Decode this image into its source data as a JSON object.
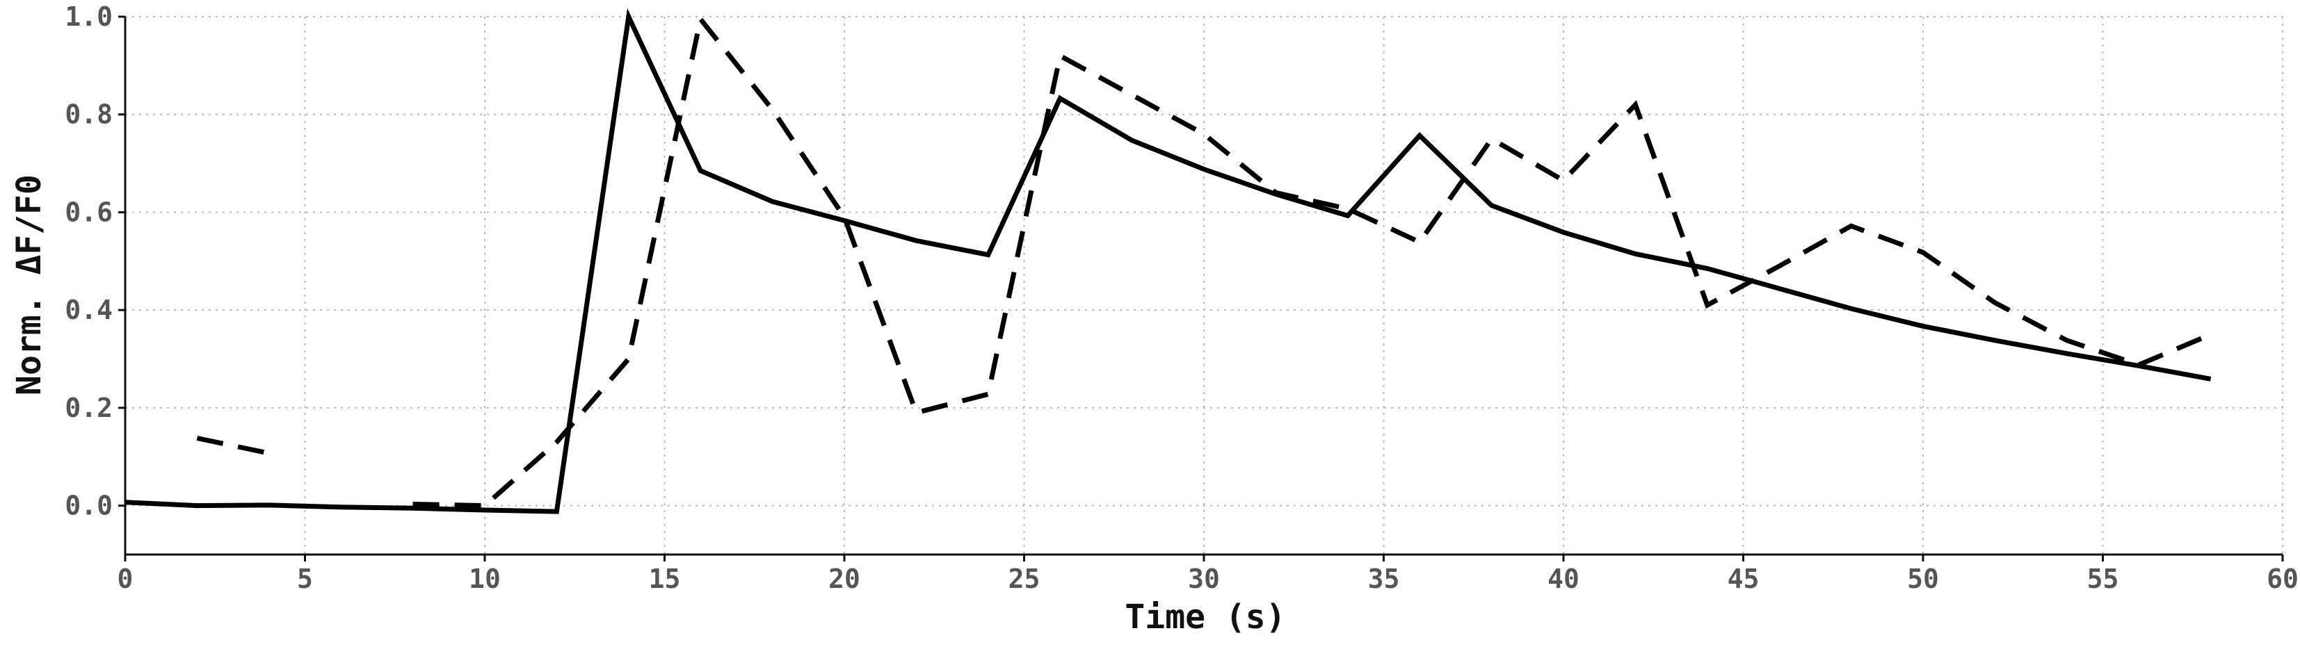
{
  "chart_data": {
    "type": "line",
    "title": "",
    "xlabel": "Time (s)",
    "ylabel": "Norm. ΔF/F0",
    "xlim": [
      0,
      60
    ],
    "ylim": [
      -0.1,
      1.0
    ],
    "xticks": [
      0,
      5,
      10,
      15,
      20,
      25,
      30,
      35,
      40,
      45,
      50,
      55,
      60
    ],
    "xtick_labels": [
      "0",
      "5",
      "10",
      "15",
      "20",
      "25",
      "30",
      "35",
      "40",
      "45",
      "50",
      "55",
      "60"
    ],
    "yticks": [
      0.0,
      0.2,
      0.4,
      0.6,
      0.8,
      1.0
    ],
    "ytick_labels": [
      "0.0",
      "0.2",
      "0.4",
      "0.6",
      "0.8",
      "1.0"
    ],
    "grid": true,
    "legend": "none",
    "series": [
      {
        "style": "solid",
        "color": "#000000",
        "points": [
          [
            0,
            0.007
          ],
          [
            2,
            0.0
          ],
          [
            4,
            0.001
          ],
          [
            6,
            -0.003
          ],
          [
            8,
            -0.005
          ],
          [
            10,
            -0.009
          ],
          [
            12,
            -0.012
          ],
          [
            14,
            1.0
          ],
          [
            16,
            0.685
          ],
          [
            18,
            0.622
          ],
          [
            20,
            0.583
          ],
          [
            22,
            0.542
          ],
          [
            24,
            0.513
          ],
          [
            26,
            0.833
          ],
          [
            28,
            0.747
          ],
          [
            30,
            0.688
          ],
          [
            32,
            0.637
          ],
          [
            34,
            0.593
          ],
          [
            36,
            0.757
          ],
          [
            38,
            0.614
          ],
          [
            40,
            0.559
          ],
          [
            42,
            0.515
          ],
          [
            44,
            0.485
          ],
          [
            46,
            0.444
          ],
          [
            48,
            0.403
          ],
          [
            50,
            0.367
          ],
          [
            52,
            0.338
          ],
          [
            54,
            0.311
          ],
          [
            56,
            0.286
          ],
          [
            58,
            0.259
          ]
        ]
      },
      {
        "style": "dashed",
        "color": "#000000",
        "points": [
          [
            2,
            0.138
          ],
          [
            4,
            0.107
          ],
          [
            6,
            null
          ],
          [
            8,
            0.003
          ],
          [
            10,
            0.0
          ],
          [
            12,
            0.13
          ],
          [
            14,
            0.3
          ],
          [
            16,
            0.995
          ],
          [
            18,
            0.81
          ],
          [
            20,
            0.59
          ],
          [
            22,
            0.19
          ],
          [
            24,
            0.228
          ],
          [
            26,
            0.92
          ],
          [
            28,
            0.84
          ],
          [
            30,
            0.76
          ],
          [
            32,
            0.64
          ],
          [
            34,
            0.607
          ],
          [
            36,
            0.539
          ],
          [
            38,
            0.75
          ],
          [
            40,
            0.665
          ],
          [
            42,
            0.82
          ],
          [
            44,
            0.41
          ],
          [
            46,
            0.49
          ],
          [
            48,
            0.572
          ],
          [
            50,
            0.518
          ],
          [
            52,
            0.415
          ],
          [
            54,
            0.338
          ],
          [
            56,
            0.288
          ],
          [
            58,
            0.35
          ]
        ]
      }
    ]
  }
}
